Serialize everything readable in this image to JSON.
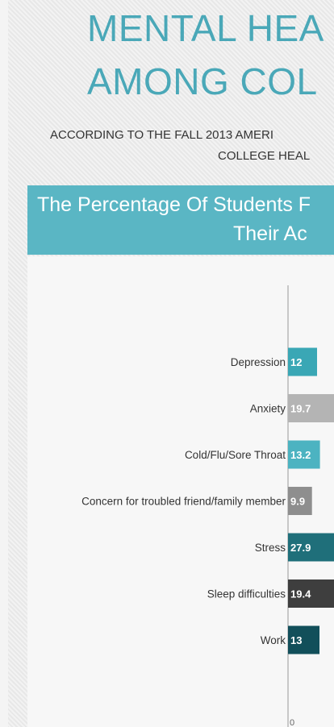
{
  "header": {
    "title_line1": "MENTAL HEA",
    "title_line2": "AMONG COL",
    "subtitle_line1": "ACCORDING TO THE FALL 2013 AMERI",
    "subtitle_line2": "COLLEGE HEAL"
  },
  "banner": {
    "line1": "The Percentage Of Students F",
    "line2": "Their Ac"
  },
  "colors": {
    "teal": "#3aa7b5",
    "light_gray": "#b4b4b4",
    "dark_teal": "#1f6f7a",
    "gray": "#8e8e8e",
    "dark_gray": "#3e3e3e",
    "darkest_teal": "#124f5a"
  },
  "chart_data": {
    "type": "bar",
    "orientation": "horizontal",
    "categories": [
      "Depression",
      "Anxiety",
      "Cold/Flu/Sore Throat",
      "Concern for troubled friend/family member",
      "Stress",
      "Sleep difficulties",
      "Work"
    ],
    "values": [
      12,
      19.7,
      13.2,
      9.9,
      27.9,
      19.4,
      13
    ],
    "value_labels": [
      "12",
      "19.7",
      "13.2",
      "9.9",
      "27.9",
      "19.4",
      "13"
    ],
    "bar_colors": [
      "#3aa7b5",
      "#b4b4b4",
      "#4cb3c1",
      "#8e8e8e",
      "#1f6f7a",
      "#3e3e3e",
      "#124f5a"
    ],
    "x_tick_labels": [
      "0"
    ],
    "xlim": [
      0,
      30
    ]
  }
}
